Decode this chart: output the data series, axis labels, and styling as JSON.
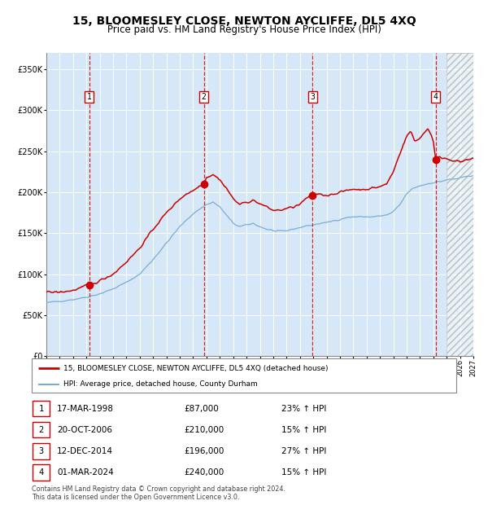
{
  "title": "15, BLOOMESLEY CLOSE, NEWTON AYCLIFFE, DL5 4XQ",
  "subtitle": "Price paid vs. HM Land Registry's House Price Index (HPI)",
  "title_fontsize": 10,
  "subtitle_fontsize": 8.5,
  "plot_bg_color": "#d6e8f7",
  "ylim": [
    0,
    370000
  ],
  "xlim_start": 1995,
  "xlim_end": 2027,
  "sale_dates": [
    1998.21,
    2006.8,
    2014.95,
    2024.17
  ],
  "sale_prices": [
    87000,
    210000,
    196000,
    240000
  ],
  "sale_labels": [
    "1",
    "2",
    "3",
    "4"
  ],
  "sale_info": [
    {
      "num": "1",
      "date": "17-MAR-1998",
      "price": "£87,000",
      "hpi": "23% ↑ HPI"
    },
    {
      "num": "2",
      "date": "20-OCT-2006",
      "price": "£210,000",
      "hpi": "15% ↑ HPI"
    },
    {
      "num": "3",
      "date": "12-DEC-2014",
      "price": "£196,000",
      "hpi": "27% ↑ HPI"
    },
    {
      "num": "4",
      "date": "01-MAR-2024",
      "price": "£240,000",
      "hpi": "15% ↑ HPI"
    }
  ],
  "red_line_color": "#cc0000",
  "blue_line_color": "#7aadd4",
  "legend_label_red": "15, BLOOMESLEY CLOSE, NEWTON AYCLIFFE, DL5 4XQ (detached house)",
  "legend_label_blue": "HPI: Average price, detached house, County Durham",
  "footer": "Contains HM Land Registry data © Crown copyright and database right 2024.\nThis data is licensed under the Open Government Licence v3.0.",
  "future_hatch_start": 2025.0,
  "blue_anchors_t": [
    1995.0,
    1996.0,
    1997.0,
    1998.0,
    1999.0,
    2000.0,
    2001.0,
    2002.0,
    2003.0,
    2004.0,
    2005.0,
    2006.0,
    2007.0,
    2007.5,
    2008.0,
    2008.5,
    2009.0,
    2009.5,
    2010.0,
    2010.5,
    2011.0,
    2011.5,
    2012.0,
    2012.5,
    2013.0,
    2013.5,
    2014.0,
    2014.5,
    2015.0,
    2015.5,
    2016.0,
    2016.5,
    2017.0,
    2017.5,
    2018.0,
    2018.5,
    2019.0,
    2019.5,
    2020.0,
    2020.5,
    2021.0,
    2021.5,
    2022.0,
    2022.5,
    2023.0,
    2023.5,
    2024.0,
    2024.5,
    2025.0,
    2025.5,
    2026.0,
    2026.5,
    2027.0
  ],
  "blue_anchors_v": [
    65000,
    67000,
    69000,
    72000,
    76000,
    82000,
    90000,
    100000,
    118000,
    138000,
    158000,
    174000,
    185000,
    188000,
    182000,
    172000,
    162000,
    158000,
    160000,
    162000,
    158000,
    155000,
    153000,
    152000,
    153000,
    155000,
    157000,
    159000,
    160000,
    162000,
    163000,
    165000,
    167000,
    169000,
    170000,
    170000,
    170000,
    170000,
    171000,
    172000,
    176000,
    185000,
    198000,
    205000,
    208000,
    210000,
    212000,
    213000,
    215000,
    216000,
    217000,
    219000,
    221000
  ],
  "red_anchors_t": [
    1995.0,
    1996.0,
    1997.0,
    1997.5,
    1998.0,
    1998.21,
    1998.5,
    1999.0,
    2000.0,
    2001.0,
    2002.0,
    2003.0,
    2004.0,
    2005.0,
    2005.5,
    2006.0,
    2006.5,
    2006.8,
    2007.0,
    2007.5,
    2008.0,
    2008.5,
    2009.0,
    2009.5,
    2010.0,
    2010.5,
    2011.0,
    2011.5,
    2012.0,
    2012.5,
    2013.0,
    2013.5,
    2014.0,
    2014.5,
    2014.95,
    2015.0,
    2015.5,
    2016.0,
    2016.5,
    2017.0,
    2017.5,
    2018.0,
    2018.5,
    2019.0,
    2019.5,
    2020.0,
    2020.5,
    2021.0,
    2021.5,
    2022.0,
    2022.3,
    2022.6,
    2022.9,
    2023.0,
    2023.3,
    2023.6,
    2023.9,
    2024.0,
    2024.17,
    2024.5,
    2025.0,
    2025.5,
    2026.0,
    2026.5,
    2027.0
  ],
  "red_anchors_v": [
    78000,
    78000,
    80000,
    83000,
    86000,
    87000,
    88000,
    92000,
    100000,
    115000,
    132000,
    155000,
    175000,
    192000,
    198000,
    202000,
    208000,
    210000,
    218000,
    222000,
    215000,
    205000,
    192000,
    185000,
    188000,
    190000,
    186000,
    182000,
    178000,
    178000,
    180000,
    182000,
    185000,
    193000,
    196000,
    197000,
    198000,
    196000,
    198000,
    200000,
    202000,
    204000,
    203000,
    204000,
    205000,
    207000,
    210000,
    225000,
    248000,
    268000,
    275000,
    262000,
    265000,
    267000,
    272000,
    278000,
    268000,
    262000,
    240000,
    243000,
    241000,
    239000,
    237000,
    239000,
    241000
  ]
}
